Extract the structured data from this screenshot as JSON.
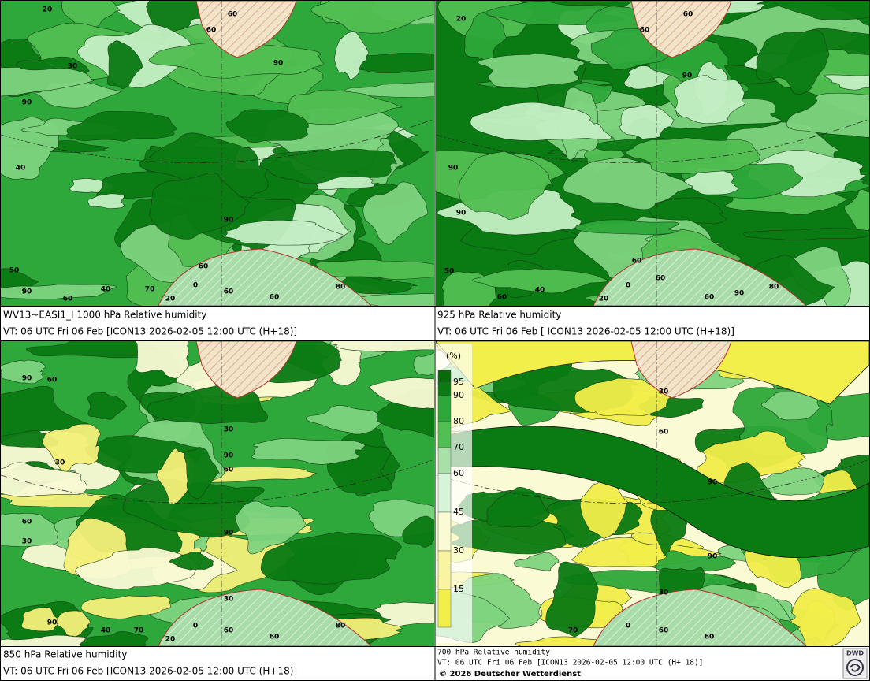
{
  "panels": [
    {
      "caption_line1": "WV13~EASI1_I 1000 hPa Relative humidity",
      "caption_line2": "VT: 06 UTC Fri  06 Feb [ICON13 2026-02-05 12:00 UTC  (H+18)]",
      "contour_labels": [
        20,
        60,
        60,
        30,
        90,
        90,
        40,
        90,
        50,
        60,
        0,
        60,
        70,
        40,
        20,
        90,
        60,
        60,
        80
      ]
    },
    {
      "caption_line1": "925 hPa Relative humidity",
      "caption_line2": "VT: 06 UTC Fri  06 Feb [ ICON13 2026-02-05 12:00 UTC  (H+18)]",
      "contour_labels": [
        20,
        60,
        60,
        90,
        90,
        90,
        50,
        60,
        0,
        60,
        40,
        60,
        20,
        60,
        80,
        90
      ]
    },
    {
      "caption_line1": "850 hPa  Relative humidity",
      "caption_line2": "VT: 06 UTC Fri  06 Feb [ICON13 2026-02-05 12:00 UTC  (H+18)]",
      "contour_labels": [
        90,
        60,
        30,
        90,
        60,
        30,
        60,
        30,
        90,
        30,
        90,
        40,
        70,
        20,
        0,
        60,
        60,
        80
      ]
    },
    {
      "caption_line1": "700 hPa Relative humidity",
      "caption_line2": "VT: 06 UTC Fri  06 Feb [ICON13 2026-02-05 12:00 UTC  (H+ 18)]",
      "contour_labels": [
        30,
        60,
        90,
        90,
        30,
        70,
        0,
        60,
        60
      ]
    }
  ],
  "legend": {
    "unit": "(%)",
    "labels": [
      95,
      90,
      80,
      70,
      60,
      45,
      30,
      15
    ]
  },
  "copyright": "© 2026 Deutscher Wetterdienst",
  "logo": "DWD"
}
